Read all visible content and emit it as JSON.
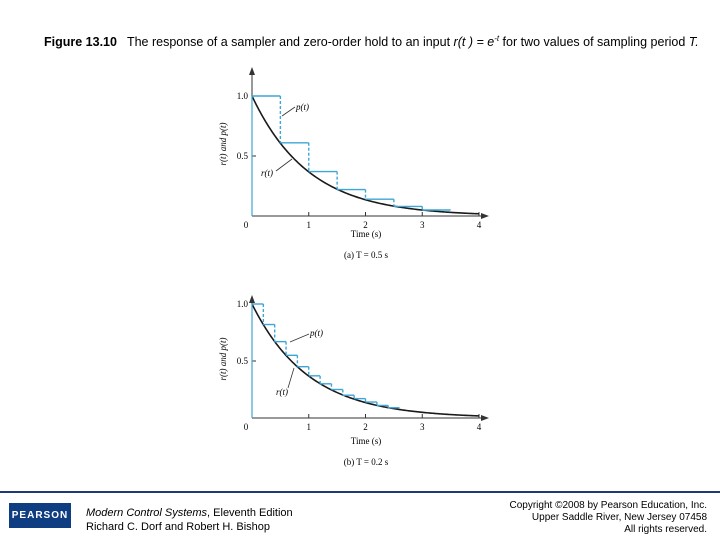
{
  "header": {
    "figure_label": "Figure 13.10",
    "caption_pre": "The response of a sampler and zero-order hold to an input ",
    "caption_input": "r(t ) = e",
    "caption_exp": "-t",
    "caption_post": " for two values of sampling period ",
    "caption_period": "T."
  },
  "colors": {
    "curve": "#1a1a1a",
    "hold": "#3ea6d6",
    "axis": "#333333"
  },
  "chart_data": [
    {
      "type": "line",
      "panel_caption": "(a)  T = 0.5 s",
      "xlabel": "Time (s)",
      "ylabel": "r(t) and p(t)",
      "xlim": [
        0,
        4
      ],
      "ylim": [
        0,
        1
      ],
      "xticks": [
        "0",
        "1",
        "2",
        "3",
        "4"
      ],
      "yticks": [
        "0",
        "0.5",
        "1.0"
      ],
      "sampling_period": 0.5,
      "series": [
        {
          "name": "r(t)",
          "label": "r(t)",
          "expression": "e^-t",
          "style": "solid"
        },
        {
          "name": "p(t)",
          "label": "p(t)",
          "style": "staircase",
          "x": [
            0,
            0.5,
            1.0,
            1.5,
            2.0,
            2.5,
            3.0
          ],
          "values": [
            1.0,
            0.61,
            0.37,
            0.22,
            0.14,
            0.08,
            0.05
          ]
        }
      ]
    },
    {
      "type": "line",
      "panel_caption": "(b)  T = 0.2 s",
      "xlabel": "Time (s)",
      "ylabel": "r(t) and p(t)",
      "xlim": [
        0,
        4
      ],
      "ylim": [
        0,
        1
      ],
      "xticks": [
        "0",
        "1",
        "2",
        "3",
        "4"
      ],
      "yticks": [
        "0",
        "0.5",
        "1.0"
      ],
      "sampling_period": 0.2,
      "series": [
        {
          "name": "r(t)",
          "label": "r(t)",
          "expression": "e^-t",
          "style": "solid"
        },
        {
          "name": "p(t)",
          "label": "p(t)",
          "style": "staircase",
          "x": [
            0,
            0.2,
            0.4,
            0.6,
            0.8,
            1.0,
            1.2,
            1.4,
            1.6,
            1.8,
            2.0,
            2.2,
            2.4
          ],
          "values": [
            1.0,
            0.82,
            0.67,
            0.55,
            0.45,
            0.37,
            0.3,
            0.25,
            0.2,
            0.17,
            0.14,
            0.11,
            0.09
          ]
        }
      ]
    }
  ],
  "footer": {
    "book_title": "Modern Control Systems",
    "book_edition": ", Eleventh Edition",
    "authors": "Richard C. Dorf and Robert H. Bishop",
    "copyright_1": "Copyright ©2008 by Pearson Education, Inc.",
    "copyright_2": "Upper Saddle River, New Jersey 07458",
    "copyright_3": "All rights reserved.",
    "logo_text": "PEARSON"
  }
}
